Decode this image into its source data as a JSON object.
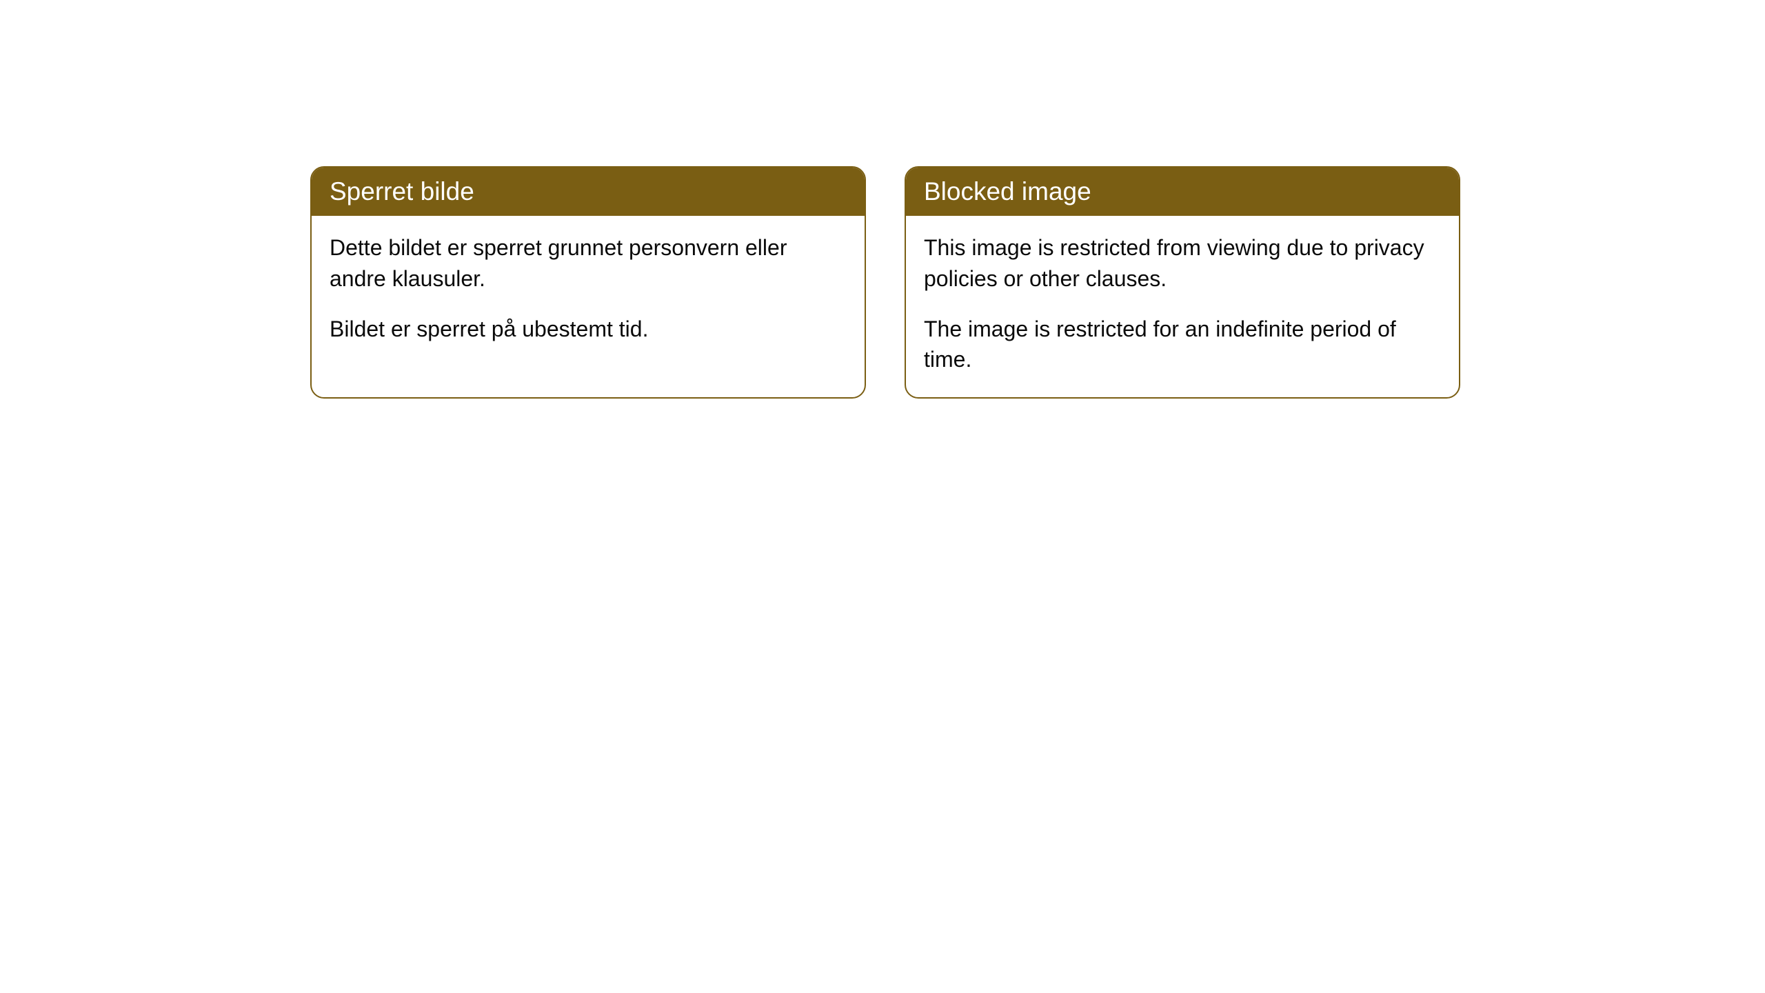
{
  "cards": [
    {
      "title": "Sperret bilde",
      "paragraph1": "Dette bildet er sperret grunnet personvern eller andre klausuler.",
      "paragraph2": "Bildet er sperret på ubestemt tid."
    },
    {
      "title": "Blocked image",
      "paragraph1": "This image is restricted from viewing due to privacy policies or other clauses.",
      "paragraph2": "The image is restricted for an indefinite period of time."
    }
  ],
  "styling": {
    "header_background_color": "#7a5e13",
    "header_text_color": "#ffffff",
    "body_text_color": "#0a0a0a",
    "card_border_color": "#7a5e13",
    "card_background_color": "#ffffff",
    "page_background_color": "#ffffff",
    "border_radius": 20,
    "header_fontsize": 37,
    "body_fontsize": 32
  }
}
